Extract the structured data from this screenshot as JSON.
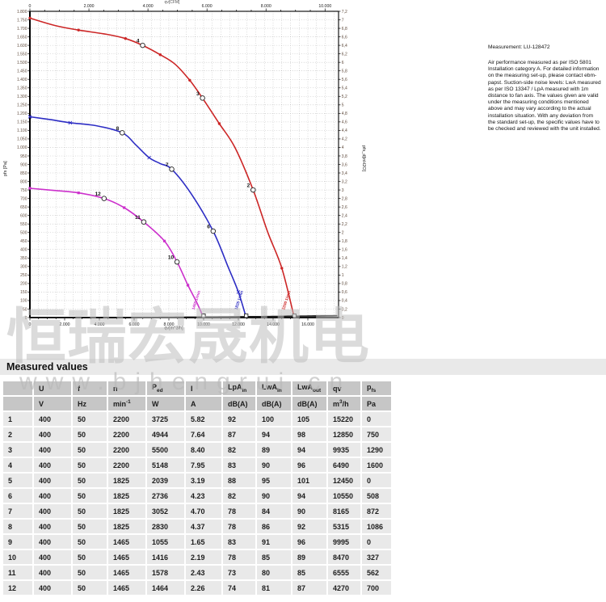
{
  "measurement_note": {
    "title": "Measurement: LU-128472",
    "body": "Air performance measured as per ISO 5801 Installation category A. For detailed information on the measuring set-up, please contact ebm-papst. Suction-side noise levels: LwA measured as per ISO 13347 / LpA measured with 1m distance to fan axis. The values given are valid under the measuring conditions mentioned above and may vary according to the actual installation situation. With any deviation from the standard set-up, the specific values have to be checked and reviewed with the unit installed."
  },
  "watermark": {
    "cn": "恒瑞宏晟机电",
    "url": "www.bjhengrui.cn"
  },
  "chart_data": {
    "type": "line",
    "title": "",
    "x_axis_bottom": {
      "label": "qv[m^3/h]",
      "min": 0,
      "max": 16000,
      "tick_step": 500,
      "label_step": 2000,
      "plot_max": 17767
    },
    "x_axis_top": {
      "label": "qv[CFM]",
      "min": 0,
      "max": 10000,
      "tick_step": 500,
      "label_step": 2000
    },
    "y_axis_left": {
      "label": "pfs [Pa]",
      "min": 0,
      "max": 1800,
      "tick_step": 50
    },
    "y_axis_right": {
      "label": "pfs_d[inH2O]",
      "min": 0,
      "max": 7.2,
      "tick_step": 0.2
    },
    "grid": true,
    "series": [
      {
        "name": "2200 1/min",
        "color": "#cc2626",
        "marker": "circle",
        "label_pos": [
          14830,
          100
        ],
        "points": [
          [
            0,
            1760
          ],
          [
            1500,
            1715
          ],
          [
            2800,
            1690
          ],
          [
            4400,
            1665
          ],
          [
            5500,
            1640
          ],
          [
            6490,
            1600
          ],
          [
            7500,
            1545
          ],
          [
            8350,
            1490
          ],
          [
            9200,
            1395
          ],
          [
            9935,
            1290
          ],
          [
            10900,
            1140
          ],
          [
            11800,
            1000
          ],
          [
            12850,
            750
          ],
          [
            13700,
            500
          ],
          [
            14500,
            290
          ],
          [
            15220,
            0
          ]
        ]
      },
      {
        "name": "1825 1/min",
        "color": "#2d2dc4",
        "marker": "x",
        "label_pos": [
          12100,
          100
        ],
        "points": [
          [
            0,
            1180
          ],
          [
            1200,
            1163
          ],
          [
            2320,
            1145
          ],
          [
            3800,
            1128
          ],
          [
            5315,
            1086
          ],
          [
            6100,
            1015
          ],
          [
            6865,
            940
          ],
          [
            7500,
            905
          ],
          [
            8165,
            872
          ],
          [
            9270,
            730
          ],
          [
            10550,
            508
          ],
          [
            11400,
            300
          ],
          [
            12000,
            150
          ],
          [
            12450,
            0
          ]
        ]
      },
      {
        "name": "1465 1/min",
        "color": "#cc30cc",
        "marker": "square",
        "label_pos": [
          9640,
          100
        ],
        "points": [
          [
            0,
            760
          ],
          [
            1400,
            747
          ],
          [
            2800,
            733
          ],
          [
            4270,
            700
          ],
          [
            5430,
            646
          ],
          [
            6555,
            562
          ],
          [
            7745,
            450
          ],
          [
            8470,
            327
          ],
          [
            9100,
            190
          ],
          [
            9600,
            90
          ],
          [
            9995,
            0
          ]
        ]
      }
    ],
    "system_curves": [
      {
        "k": 3.83e-08
      },
      {
        "k": 1.31e-08
      },
      {
        "k": 4.56e-09
      },
      {
        "k": 8e-10
      }
    ],
    "operating_points": [
      {
        "n": 1,
        "q": 15220,
        "p": 0
      },
      {
        "n": 2,
        "q": 12850,
        "p": 750
      },
      {
        "n": 3,
        "q": 9935,
        "p": 1290
      },
      {
        "n": 4,
        "q": 6490,
        "p": 1600
      },
      {
        "n": 5,
        "q": 12450,
        "p": 0
      },
      {
        "n": 6,
        "q": 10550,
        "p": 508
      },
      {
        "n": 7,
        "q": 8165,
        "p": 872
      },
      {
        "n": 8,
        "q": 5315,
        "p": 1086
      },
      {
        "n": 9,
        "q": 9995,
        "p": 0
      },
      {
        "n": 10,
        "q": 8470,
        "p": 327
      },
      {
        "n": 11,
        "q": 6555,
        "p": 562
      },
      {
        "n": 12,
        "q": 4270,
        "p": 700
      }
    ]
  },
  "table": {
    "title": "Measured values",
    "columns": [
      "",
      "U",
      "f",
      "n",
      "P_{ed}",
      "I",
      "LpA_{in}",
      "LwA_{in}",
      "LwA_{out}",
      "qv",
      "p_{fs}"
    ],
    "units": [
      "",
      "V",
      "Hz",
      "min^{-1}",
      "W",
      "A",
      "dB(A)",
      "dB(A)",
      "dB(A)",
      "m^{3}/h",
      "Pa"
    ],
    "rows": [
      [
        "1",
        "400",
        "50",
        "2200",
        "3725",
        "5.82",
        "92",
        "100",
        "105",
        "15220",
        "0"
      ],
      [
        "2",
        "400",
        "50",
        "2200",
        "4944",
        "7.64",
        "87",
        "94",
        "98",
        "12850",
        "750"
      ],
      [
        "3",
        "400",
        "50",
        "2200",
        "5500",
        "8.40",
        "82",
        "89",
        "94",
        "9935",
        "1290"
      ],
      [
        "4",
        "400",
        "50",
        "2200",
        "5148",
        "7.95",
        "83",
        "90",
        "96",
        "6490",
        "1600"
      ],
      [
        "5",
        "400",
        "50",
        "1825",
        "2039",
        "3.19",
        "88",
        "95",
        "101",
        "12450",
        "0"
      ],
      [
        "6",
        "400",
        "50",
        "1825",
        "2736",
        "4.23",
        "82",
        "90",
        "94",
        "10550",
        "508"
      ],
      [
        "7",
        "400",
        "50",
        "1825",
        "3052",
        "4.70",
        "78",
        "84",
        "90",
        "8165",
        "872"
      ],
      [
        "8",
        "400",
        "50",
        "1825",
        "2830",
        "4.37",
        "78",
        "86",
        "92",
        "5315",
        "1086"
      ],
      [
        "9",
        "400",
        "50",
        "1465",
        "1055",
        "1.65",
        "83",
        "91",
        "96",
        "9995",
        "0"
      ],
      [
        "10",
        "400",
        "50",
        "1465",
        "1416",
        "2.19",
        "78",
        "85",
        "89",
        "8470",
        "327"
      ],
      [
        "11",
        "400",
        "50",
        "1465",
        "1578",
        "2.43",
        "73",
        "80",
        "85",
        "6555",
        "562"
      ],
      [
        "12",
        "400",
        "50",
        "1465",
        "1464",
        "2.26",
        "74",
        "81",
        "87",
        "4270",
        "700"
      ]
    ]
  }
}
